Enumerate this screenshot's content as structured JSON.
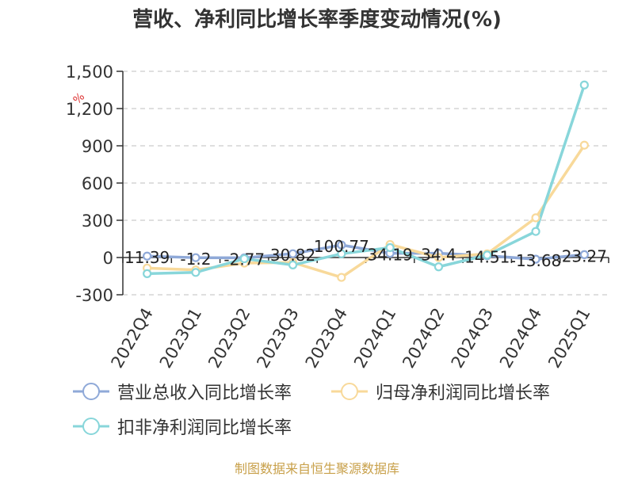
{
  "title": "营收、净利同比增长率季度变动情况(%)",
  "source": "制图数据来自恒生聚源数据库",
  "chart_data": {
    "type": "line",
    "ylabel": "%",
    "ylim": [
      -300,
      1500
    ],
    "yticks": [
      -300,
      0,
      300,
      600,
      900,
      1200,
      1500
    ],
    "ytick_labels": [
      "-300",
      "0",
      "300",
      "600",
      "900",
      "1,200",
      "1,500"
    ],
    "grid": true,
    "categories": [
      "2022Q4",
      "2023Q1",
      "2023Q2",
      "2023Q3",
      "2023Q4",
      "2024Q1",
      "2024Q2",
      "2024Q3",
      "2024Q4",
      "2025Q1"
    ],
    "data_labels": [
      "11.39",
      "-1.2",
      "-2.77",
      "30.82",
      "100.77",
      "34.19",
      "34.4",
      "14.51",
      "-13.68",
      "23.27"
    ],
    "series": [
      {
        "name": "营业总收入同比增长率",
        "color": "#8fa9d8",
        "values": [
          11.39,
          -1.2,
          -2.77,
          30.82,
          100.77,
          34.19,
          34.4,
          14.51,
          -13.68,
          23.27
        ]
      },
      {
        "name": "归母净利润同比增长率",
        "color": "#f8d99a",
        "values": [
          -85,
          -100,
          -45,
          -40,
          -160,
          105,
          0,
          30,
          320,
          905
        ]
      },
      {
        "name": "扣非净利润同比增长率",
        "color": "#88d6da",
        "values": [
          -130,
          -120,
          -10,
          -60,
          30,
          80,
          -75,
          20,
          210,
          1390
        ]
      }
    ],
    "legend_position": "bottom"
  }
}
